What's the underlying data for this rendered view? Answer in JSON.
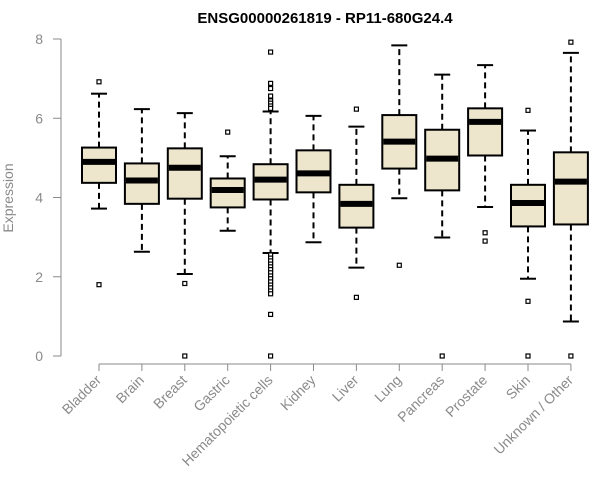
{
  "chart_data": {
    "type": "boxplot",
    "title": "ENSG00000261819 - RP11-680G24.4",
    "ylabel": "Expression",
    "xlabel": "",
    "ylim": [
      0,
      8
    ],
    "yticks": [
      0,
      2,
      4,
      6,
      8
    ],
    "colors": {
      "box_fill": "#ede6cc",
      "stroke": "#000000",
      "axis": "#8a8a8a",
      "text": "#8a8a8a"
    },
    "categories": [
      "Bladder",
      "Brain",
      "Breast",
      "Gastric",
      "Hematopoietic cells",
      "Kidney",
      "Liver",
      "Lung",
      "Pancreas",
      "Prostate",
      "Skin",
      "Unknown / Other"
    ],
    "boxes": [
      {
        "category": "Bladder",
        "whisker_low": 3.72,
        "q1": 4.37,
        "median": 4.9,
        "q3": 5.26,
        "whisker_high": 6.62,
        "outliers": [
          6.92,
          1.8
        ]
      },
      {
        "category": "Brain",
        "whisker_low": 2.63,
        "q1": 3.84,
        "median": 4.43,
        "q3": 4.86,
        "whisker_high": 6.23,
        "outliers": []
      },
      {
        "category": "Breast",
        "whisker_low": 2.07,
        "q1": 3.97,
        "median": 4.75,
        "q3": 5.24,
        "whisker_high": 6.13,
        "outliers": [
          1.83,
          0.0
        ]
      },
      {
        "category": "Gastric",
        "whisker_low": 3.16,
        "q1": 3.75,
        "median": 4.19,
        "q3": 4.48,
        "whisker_high": 5.04,
        "outliers": [
          5.65
        ]
      },
      {
        "category": "Hematopoietic cells",
        "whisker_low": 2.6,
        "q1": 3.95,
        "median": 4.45,
        "q3": 4.84,
        "whisker_high": 6.17,
        "outliers": [
          7.67,
          6.88,
          6.75,
          6.56,
          6.44,
          6.38,
          6.31,
          6.25,
          2.55,
          2.47,
          2.4,
          2.32,
          2.25,
          2.18,
          2.1,
          2.02,
          1.95,
          1.87,
          1.79,
          1.72,
          1.64,
          1.57,
          1.05,
          0.0
        ]
      },
      {
        "category": "Kidney",
        "whisker_low": 2.87,
        "q1": 4.13,
        "median": 4.61,
        "q3": 5.19,
        "whisker_high": 6.06,
        "outliers": []
      },
      {
        "category": "Liver",
        "whisker_low": 2.23,
        "q1": 3.24,
        "median": 3.84,
        "q3": 4.32,
        "whisker_high": 5.79,
        "outliers": [
          6.23,
          1.48
        ]
      },
      {
        "category": "Lung",
        "whisker_low": 3.98,
        "q1": 4.73,
        "median": 5.41,
        "q3": 6.08,
        "whisker_high": 7.84,
        "outliers": [
          2.29
        ]
      },
      {
        "category": "Pancreas",
        "whisker_low": 2.99,
        "q1": 4.18,
        "median": 4.98,
        "q3": 5.71,
        "whisker_high": 7.1,
        "outliers": [
          0.0
        ]
      },
      {
        "category": "Prostate",
        "whisker_low": 3.76,
        "q1": 5.06,
        "median": 5.91,
        "q3": 6.25,
        "whisker_high": 7.34,
        "outliers": [
          3.11,
          2.9
        ]
      },
      {
        "category": "Skin",
        "whisker_low": 1.95,
        "q1": 3.27,
        "median": 3.86,
        "q3": 4.32,
        "whisker_high": 5.69,
        "outliers": [
          6.2,
          1.38,
          0.0
        ]
      },
      {
        "category": "Unknown / Other",
        "whisker_low": 0.87,
        "q1": 3.32,
        "median": 4.4,
        "q3": 5.14,
        "whisker_high": 7.65,
        "outliers": [
          7.92,
          0.0
        ]
      }
    ]
  }
}
